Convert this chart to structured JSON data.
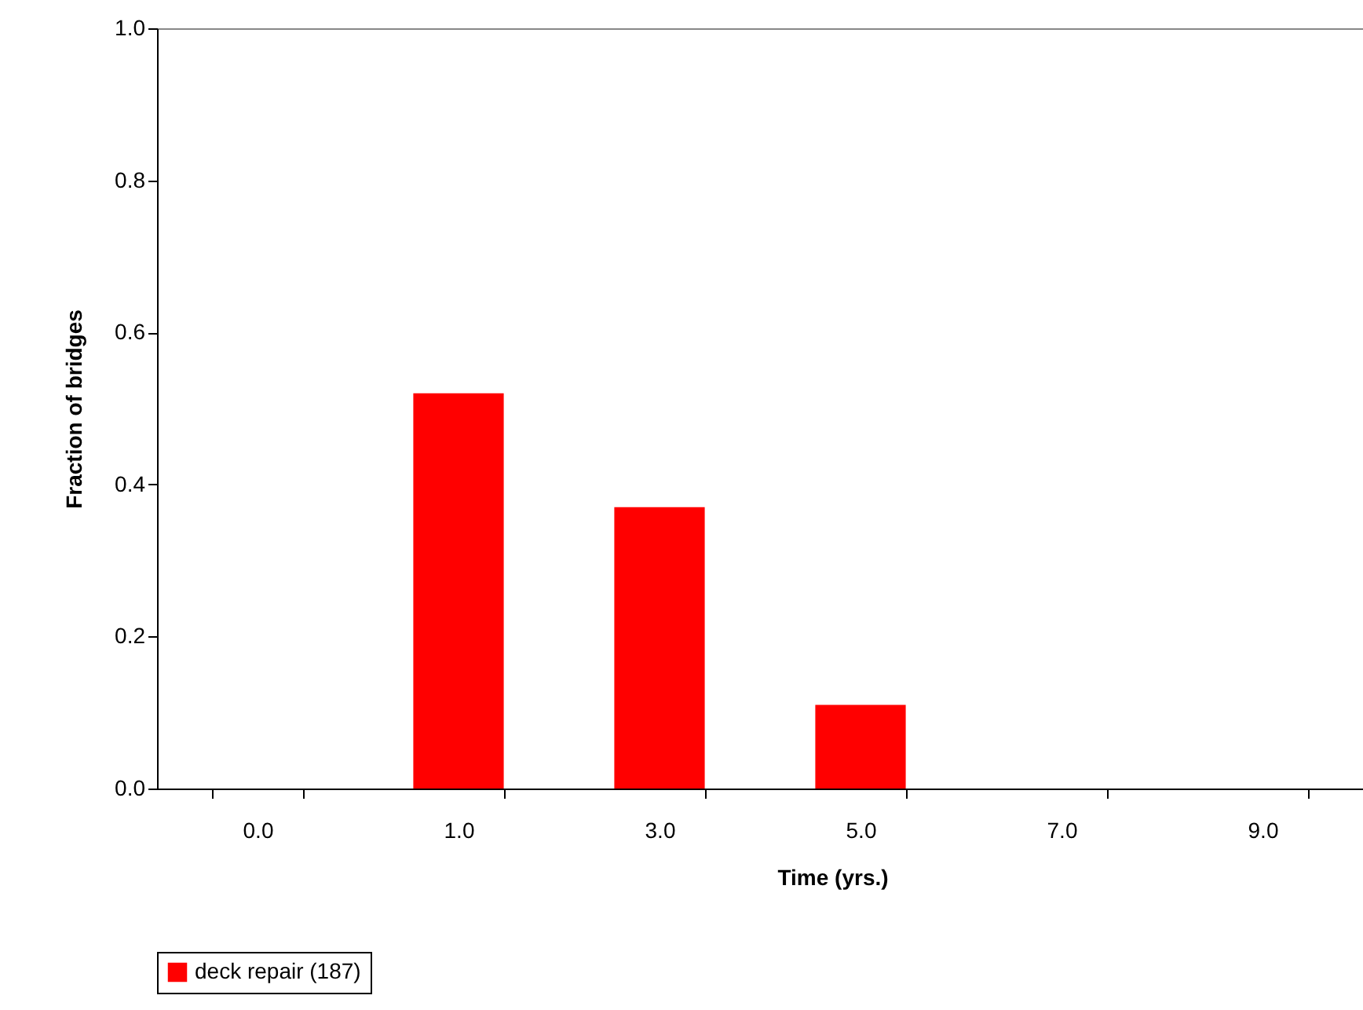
{
  "chart_data": {
    "type": "bar",
    "xlabel": "Time (yrs.)",
    "ylabel": "Fraction of bridges",
    "categories": [
      "0.0",
      "1.0",
      "3.0",
      "5.0",
      "7.0",
      "9.0"
    ],
    "series": [
      {
        "name": "deck repair (187)",
        "color": "#ff0000",
        "values": [
          0,
          0.52,
          0.37,
          0.11,
          0,
          0
        ]
      }
    ],
    "ylim": [
      0,
      1
    ],
    "yticks": [
      {
        "value": 0,
        "label": "0.0"
      },
      {
        "value": 0.2,
        "label": "0.2"
      },
      {
        "value": 0.4,
        "label": "0.4"
      },
      {
        "value": 0.6,
        "label": "0.6"
      },
      {
        "value": 0.8,
        "label": "0.8"
      },
      {
        "value": 1,
        "label": "1.0"
      }
    ],
    "legend": "bottom"
  }
}
